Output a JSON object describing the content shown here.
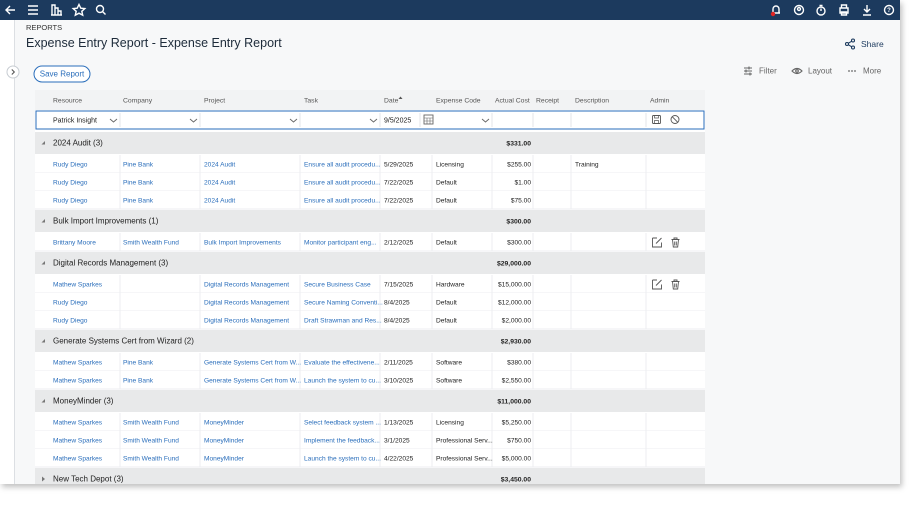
{
  "header": {
    "breadcrumb": "REPORTS",
    "title": "Expense Entry Report - Expense Entry Report",
    "share": "Share"
  },
  "toolbar": {
    "save": "Save Report",
    "filter": "Filter",
    "layout": "Layout",
    "more": "More"
  },
  "table": {
    "columns": [
      "Resource",
      "Company",
      "Project",
      "Task",
      "Date",
      "Expense Code",
      "Actual Cost",
      "Receipt",
      "Description",
      "Admin"
    ],
    "entry": {
      "resource": "Patrick Insight",
      "date": "9/5/2025"
    },
    "groups": [
      {
        "name": "2024 Audit (3)",
        "total": "$331.00",
        "rows": [
          {
            "resource": "Rudy Diego",
            "company": "Pine Bank",
            "project": "2024 Audit",
            "task": "Ensure all audit procedu...",
            "date": "5/29/2025",
            "code": "Licensing",
            "cost": "$255.00",
            "description": "Training"
          },
          {
            "resource": "Rudy Diego",
            "company": "Pine Bank",
            "project": "2024 Audit",
            "task": "Ensure all audit procedu...",
            "date": "7/22/2025",
            "code": "Default",
            "cost": "$1.00"
          },
          {
            "resource": "Rudy Diego",
            "company": "Pine Bank",
            "project": "2024 Audit",
            "task": "Ensure all audit procedu...",
            "date": "7/22/2025",
            "code": "Default",
            "cost": "$75.00"
          }
        ]
      },
      {
        "name": "Bulk Import Improvements (1)",
        "total": "$300.00",
        "rows": [
          {
            "resource": "Brittany Moore",
            "company": "Smith Wealth Fund",
            "project": "Bulk Import Improvements",
            "task": "Monitor participant eng...",
            "date": "2/12/2025",
            "code": "Default",
            "cost": "$300.00"
          }
        ]
      },
      {
        "name": "Digital Records Management (3)",
        "total": "$29,000.00",
        "rows": [
          {
            "resource": "Mathew Sparkes",
            "project": "Digital Records Management",
            "task": "Secure Business Case",
            "date": "7/15/2025",
            "code": "Hardware",
            "cost": "$15,000.00"
          },
          {
            "resource": "Rudy Diego",
            "project": "Digital Records Management",
            "task": "Secure Naming Conventi...",
            "date": "8/4/2025",
            "code": "Default",
            "cost": "$12,000.00"
          },
          {
            "resource": "Rudy Diego",
            "project": "Digital Records Management",
            "task": "Draft Strawman and Res...",
            "date": "8/4/2025",
            "code": "Default",
            "cost": "$2,000.00"
          }
        ]
      },
      {
        "name": "Generate Systems Cert from Wizard (2)",
        "total": "$2,930.00",
        "rows": [
          {
            "resource": "Mathew Sparkes",
            "company": "Pine Bank",
            "project": "Generate Systems Cert from W...",
            "task": "Evaluate the effectivene...",
            "date": "2/11/2025",
            "code": "Software",
            "cost": "$380.00"
          },
          {
            "resource": "Mathew Sparkes",
            "company": "Pine Bank",
            "project": "Generate Systems Cert from W...",
            "task": "Launch the system to cu...",
            "date": "3/10/2025",
            "code": "Software",
            "cost": "$2,550.00"
          }
        ]
      },
      {
        "name": "MoneyMinder (3)",
        "total": "$11,000.00",
        "rows": [
          {
            "resource": "Mathew Sparkes",
            "company": "Smith Wealth Fund",
            "project": "MoneyMinder",
            "task": "Select feedback system ...",
            "date": "1/13/2025",
            "code": "Licensing",
            "cost": "$5,250.00"
          },
          {
            "resource": "Mathew Sparkes",
            "company": "Smith Wealth Fund",
            "project": "MoneyMinder",
            "task": "Implement the feedback...",
            "date": "3/1/2025",
            "code": "Professional Serv...",
            "cost": "$750.00"
          },
          {
            "resource": "Mathew Sparkes",
            "company": "Smith Wealth Fund",
            "project": "MoneyMinder",
            "task": "Launch the system to cu...",
            "date": "4/22/2025",
            "code": "Professional Serv...",
            "cost": "$5,000.00"
          }
        ]
      },
      {
        "name": "New Tech Depot (3)",
        "total": "$3,450.00"
      }
    ]
  }
}
